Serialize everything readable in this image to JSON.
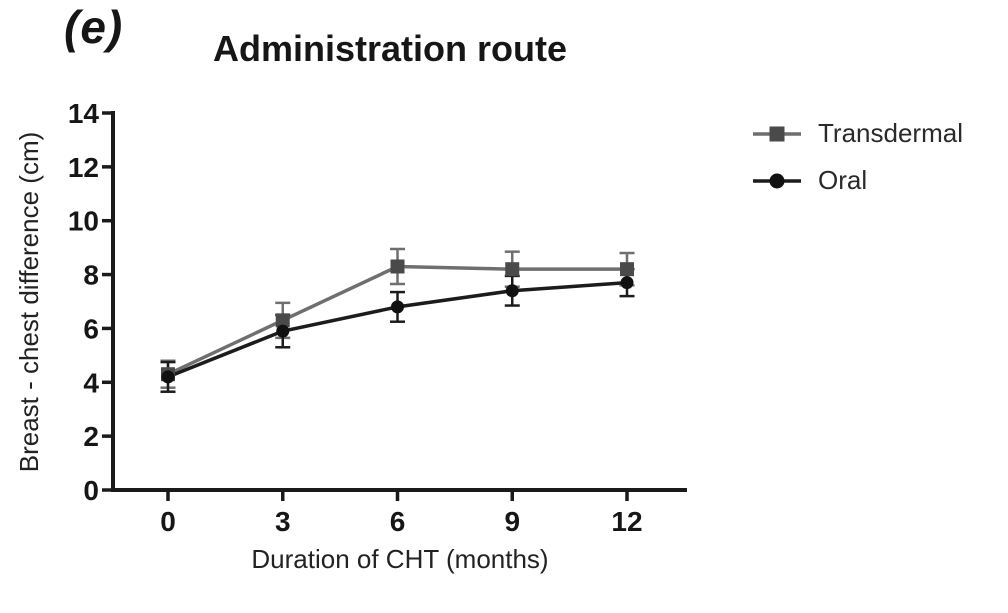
{
  "figure": {
    "panel_label": "(e)"
  },
  "chart_data": {
    "type": "line",
    "title": "Administration route",
    "xlabel": "Duration of CHT (months)",
    "ylabel": "Breast - chest difference (cm)",
    "x": [
      0,
      3,
      6,
      9,
      12
    ],
    "xticks": [
      0,
      3,
      6,
      9,
      12
    ],
    "yticks": [
      0,
      2,
      4,
      6,
      8,
      10,
      12,
      14
    ],
    "xlim": [
      0,
      12
    ],
    "ylim": [
      0,
      14
    ],
    "grid": false,
    "error_bars": true,
    "legend_position": "right",
    "series": [
      {
        "name": "Transdermal",
        "marker": "square",
        "color": "#6f6f6f",
        "marker_color": "#4a4a4a",
        "values": [
          4.3,
          6.3,
          8.3,
          8.2,
          8.2
        ],
        "errors": [
          0.5,
          0.65,
          0.65,
          0.65,
          0.6
        ]
      },
      {
        "name": "Oral",
        "marker": "circle",
        "color": "#1c1c1c",
        "marker_color": "#111111",
        "values": [
          4.2,
          5.9,
          6.8,
          7.4,
          7.7
        ],
        "errors": [
          0.55,
          0.6,
          0.55,
          0.55,
          0.5
        ]
      }
    ]
  },
  "colors": {
    "axis": "#1a1a1a",
    "text": "#161616"
  }
}
